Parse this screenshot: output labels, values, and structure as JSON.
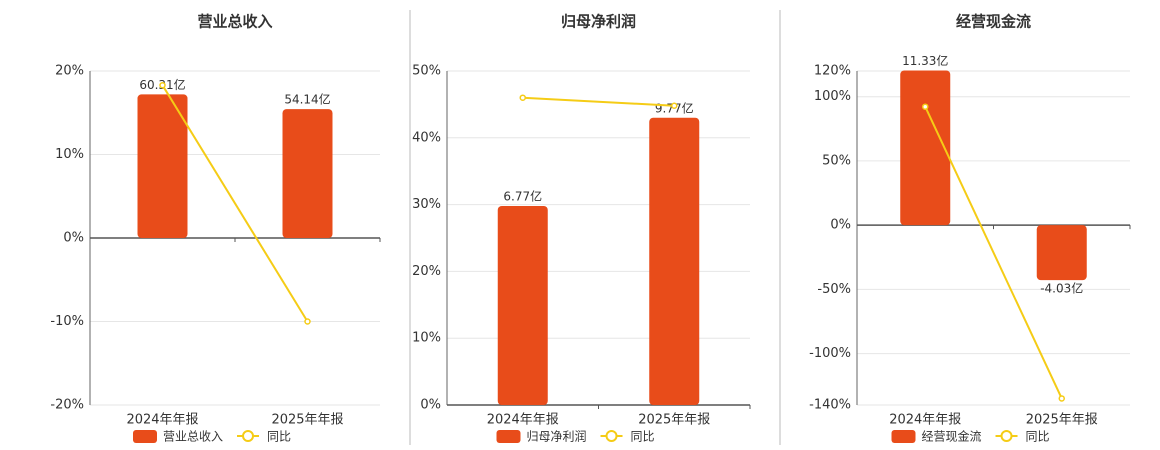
{
  "chart_data": [
    {
      "type": "bar",
      "title": "营业总收入",
      "categories": [
        "2024年年报",
        "2025年年报"
      ],
      "ylim": [
        -20,
        20
      ],
      "yticks": [
        {
          "value": 20,
          "label": "20%"
        },
        {
          "value": 10,
          "label": "10%"
        },
        {
          "value": 0,
          "label": "0%"
        },
        {
          "value": -10,
          "label": "-10%"
        },
        {
          "value": -20,
          "label": "-20%"
        }
      ],
      "series": [
        {
          "name": "营业总收入",
          "color": "#e84c1a",
          "values": [
            60.31,
            54.14
          ],
          "value_labels": [
            "60.31亿",
            "54.14亿"
          ]
        },
        {
          "name": "同比",
          "type": "line",
          "color": "#f5cc16",
          "values": [
            18.3,
            -10.0
          ]
        }
      ]
    },
    {
      "type": "bar",
      "title": "归母净利润",
      "categories": [
        "2024年年报",
        "2025年年报"
      ],
      "ylim": [
        0,
        50
      ],
      "yticks": [
        {
          "value": 50,
          "label": "50%"
        },
        {
          "value": 40,
          "label": "40%"
        },
        {
          "value": 30,
          "label": "30%"
        },
        {
          "value": 20,
          "label": "20%"
        },
        {
          "value": 10,
          "label": "10%"
        },
        {
          "value": 0,
          "label": "0%"
        }
      ],
      "series": [
        {
          "name": "归母净利润",
          "color": "#e84c1a",
          "values": [
            6.77,
            9.77
          ],
          "value_labels": [
            "6.77亿",
            "9.77亿"
          ]
        },
        {
          "name": "同比",
          "type": "line",
          "color": "#f5cc16",
          "values": [
            46.0,
            44.8
          ]
        }
      ]
    },
    {
      "type": "bar",
      "title": "经营现金流",
      "categories": [
        "2024年年报",
        "2025年年报"
      ],
      "ylim": [
        -140,
        120
      ],
      "yticks": [
        {
          "value": 120,
          "label": "120%"
        },
        {
          "value": 100,
          "label": "100%"
        },
        {
          "value": 50,
          "label": "50%"
        },
        {
          "value": 0,
          "label": "0%"
        },
        {
          "value": -50,
          "label": "-50%"
        },
        {
          "value": -100,
          "label": "-100%"
        },
        {
          "value": -140,
          "label": "-140%"
        }
      ],
      "series": [
        {
          "name": "经营现金流",
          "color": "#e84c1a",
          "values": [
            11.33,
            -4.03
          ],
          "value_labels": [
            "11.33亿",
            "-4.03亿"
          ]
        },
        {
          "name": "同比",
          "type": "line",
          "color": "#f5cc16",
          "values": [
            92.2,
            -134.9
          ]
        }
      ]
    }
  ]
}
